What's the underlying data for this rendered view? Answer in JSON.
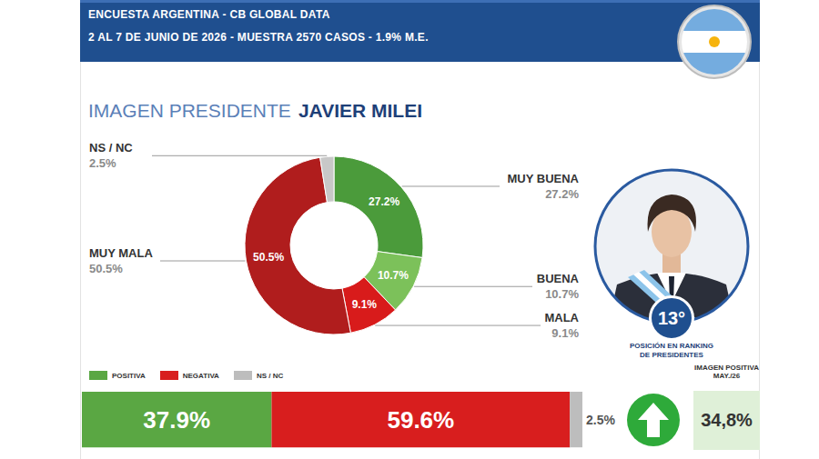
{
  "header": {
    "title": "ENCUESTA ARGENTINA - CB GLOBAL DATA",
    "subtitle": "2 AL 7 DE JUNIO DE 2026 - MUESTRA 2570 CASOS - 1.9% M.E."
  },
  "chart_data": [
    {
      "type": "pie",
      "title": "IMAGEN PRESIDENTE",
      "subtitle": "JAVIER MILEI",
      "categories": [
        "MUY BUENA",
        "BUENA",
        "MALA",
        "MUY MALA",
        "NS / NC"
      ],
      "values": [
        27.2,
        10.7,
        9.1,
        50.5,
        2.5
      ],
      "value_labels": [
        "27.2%",
        "10.7%",
        "9.1%",
        "50.5%",
        "2.5%"
      ],
      "colors": [
        "#4b9b3b",
        "#7cc15a",
        "#d81b1b",
        "#b01d1d",
        "#c8c8c8"
      ],
      "data_labels": true
    },
    {
      "type": "bar",
      "orientation": "horizontal",
      "stacked": true,
      "categories": [
        null
      ],
      "series": [
        {
          "name": "POSITIVA",
          "color": "#5aa743",
          "values": [
            37.9
          ],
          "value_labels": [
            "37.9%"
          ]
        },
        {
          "name": "NEGATIVA",
          "color": "#d81e1e",
          "values": [
            59.6
          ],
          "value_labels": [
            "59.6%"
          ]
        },
        {
          "name": "NS / NC",
          "color": "#bdbdbd",
          "values": [
            2.5
          ],
          "value_labels": [
            "2.5%"
          ]
        }
      ],
      "xlim": [
        0,
        100
      ],
      "tick_labels": false,
      "legend": "top-left",
      "data_labels": true
    }
  ],
  "ranking": {
    "label": "13°",
    "caption": "POSICIÓN EN RANKING DE PRESIDENTES"
  },
  "comparison": {
    "label": "IMAGEN POSITIVA MAY./26",
    "value": 34.8,
    "value_label": "34,8%"
  }
}
